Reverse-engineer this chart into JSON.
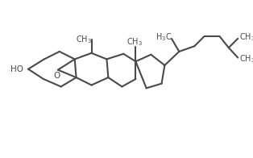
{
  "bg_color": "#ffffff",
  "line_color": "#4a4a4a",
  "text_color": "#4a4a4a",
  "linewidth": 1.5,
  "fontsize_label": 7.5,
  "fontsize_small": 7.0,
  "figsize": [
    3.14,
    1.96
  ],
  "dpi": 100
}
